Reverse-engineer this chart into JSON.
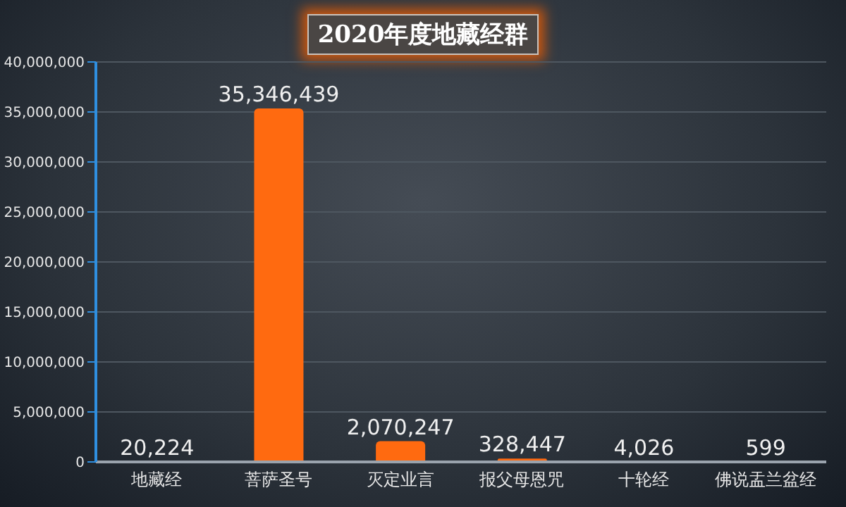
{
  "chart_data": {
    "type": "bar",
    "title": "2020年度地藏经群",
    "categories": [
      "地藏经",
      "菩萨圣号",
      "灭定业言",
      "报父母恩咒",
      "十轮经",
      "佛说盂兰盆经"
    ],
    "values": [
      20224,
      35346439,
      2070247,
      328447,
      4026,
      599
    ],
    "color": "#ff6a10",
    "ylim": [
      0,
      40000000
    ],
    "yticks": [
      {
        "value": 0,
        "label": "0"
      },
      {
        "value": 5000000,
        "label": "5,000,000"
      },
      {
        "value": 10000000,
        "label": "10,000,000"
      },
      {
        "value": 15000000,
        "label": "15,000,000"
      },
      {
        "value": 20000000,
        "label": "20,000,000"
      },
      {
        "value": 25000000,
        "label": "25,000,000"
      },
      {
        "value": 30000000,
        "label": "30,000,000"
      },
      {
        "value": 35000000,
        "label": "35,000,000"
      },
      {
        "value": 40000000,
        "label": "40,000,000"
      }
    ],
    "value_labels": [
      "20,224",
      "35,346,439",
      "2,070,247",
      "328,447",
      "4,026",
      "599"
    ],
    "grid": "y",
    "legend": false
  }
}
